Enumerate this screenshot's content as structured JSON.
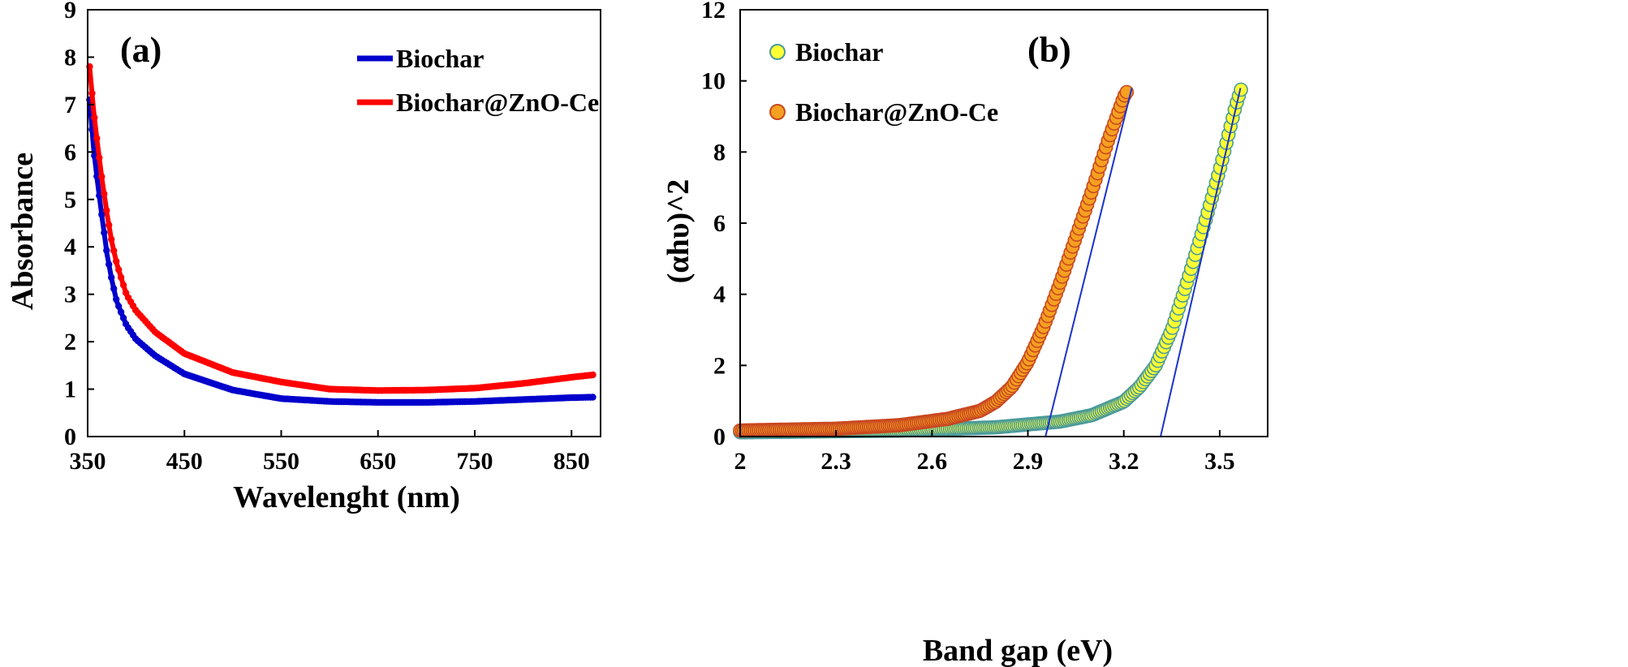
{
  "chart_data": [
    {
      "type": "line",
      "panel_label": "(a)",
      "title": "",
      "xlabel": "Wavelenght (nm)",
      "ylabel": "Absorbance",
      "xlim": [
        350,
        880
      ],
      "ylim": [
        0,
        9
      ],
      "xticks": [
        "350",
        "450",
        "550",
        "650",
        "750",
        "850"
      ],
      "yticks": [
        "0",
        "1",
        "2",
        "3",
        "4",
        "5",
        "6",
        "7",
        "8",
        "9"
      ],
      "legend_position": "top-right",
      "series": [
        {
          "name": "Biochar",
          "color": "#0000cc",
          "x": [
            352,
            356,
            360,
            365,
            370,
            375,
            380,
            390,
            400,
            420,
            450,
            500,
            550,
            600,
            650,
            700,
            750,
            800,
            850,
            872
          ],
          "y": [
            7.1,
            6.1,
            5.4,
            4.6,
            3.85,
            3.3,
            2.85,
            2.35,
            2.05,
            1.7,
            1.32,
            0.98,
            0.8,
            0.74,
            0.72,
            0.72,
            0.74,
            0.78,
            0.82,
            0.83
          ]
        },
        {
          "name": "Biochar@ZnO-Ce",
          "color": "#ff0000",
          "x": [
            352,
            356,
            360,
            365,
            370,
            375,
            380,
            390,
            400,
            420,
            450,
            500,
            550,
            600,
            650,
            700,
            750,
            800,
            850,
            872
          ],
          "y": [
            7.8,
            6.9,
            6.2,
            5.4,
            4.7,
            4.1,
            3.65,
            3.0,
            2.65,
            2.2,
            1.75,
            1.35,
            1.15,
            1.0,
            0.97,
            0.98,
            1.02,
            1.12,
            1.25,
            1.3
          ]
        }
      ]
    },
    {
      "type": "scatter",
      "panel_label": "(b)",
      "title": "",
      "xlabel": "Band gap (eV)",
      "ylabel": "(αhυ)^2",
      "xlim": [
        2.0,
        3.65
      ],
      "ylim": [
        0,
        12
      ],
      "xticks": [
        "2",
        "2.3",
        "2.6",
        "2.9",
        "3.2",
        "3.5"
      ],
      "yticks": [
        "0",
        "2",
        "4",
        "6",
        "8",
        "10",
        "12"
      ],
      "legend_position": "top-left",
      "series": [
        {
          "name": "Biochar",
          "marker_fill": "#ffff33",
          "marker_edge": "#4a9a9a",
          "x": [
            2.0,
            2.5,
            2.8,
            3.0,
            3.1,
            3.2,
            3.25,
            3.3,
            3.35,
            3.4,
            3.45,
            3.5,
            3.55,
            3.57
          ],
          "y": [
            0.12,
            0.17,
            0.26,
            0.42,
            0.6,
            0.98,
            1.4,
            2.0,
            3.0,
            4.4,
            5.9,
            7.5,
            9.3,
            9.85
          ],
          "fit_line": {
            "x": [
              3.315,
              3.565
            ],
            "y": [
              0,
              9.8
            ]
          }
        },
        {
          "name": "Biochar@ZnO-Ce",
          "marker_fill": "#f5a020",
          "marker_edge": "#c84820",
          "x": [
            2.0,
            2.3,
            2.5,
            2.65,
            2.75,
            2.8,
            2.85,
            2.9,
            2.95,
            3.0,
            3.05,
            3.1,
            3.15,
            3.2,
            3.21
          ],
          "y": [
            0.17,
            0.22,
            0.32,
            0.5,
            0.72,
            0.98,
            1.4,
            2.1,
            3.1,
            4.3,
            5.6,
            6.9,
            8.3,
            9.55,
            9.7
          ],
          "fit_line": {
            "x": [
              2.955,
              3.225
            ],
            "y": [
              0,
              9.8
            ]
          }
        }
      ]
    }
  ]
}
